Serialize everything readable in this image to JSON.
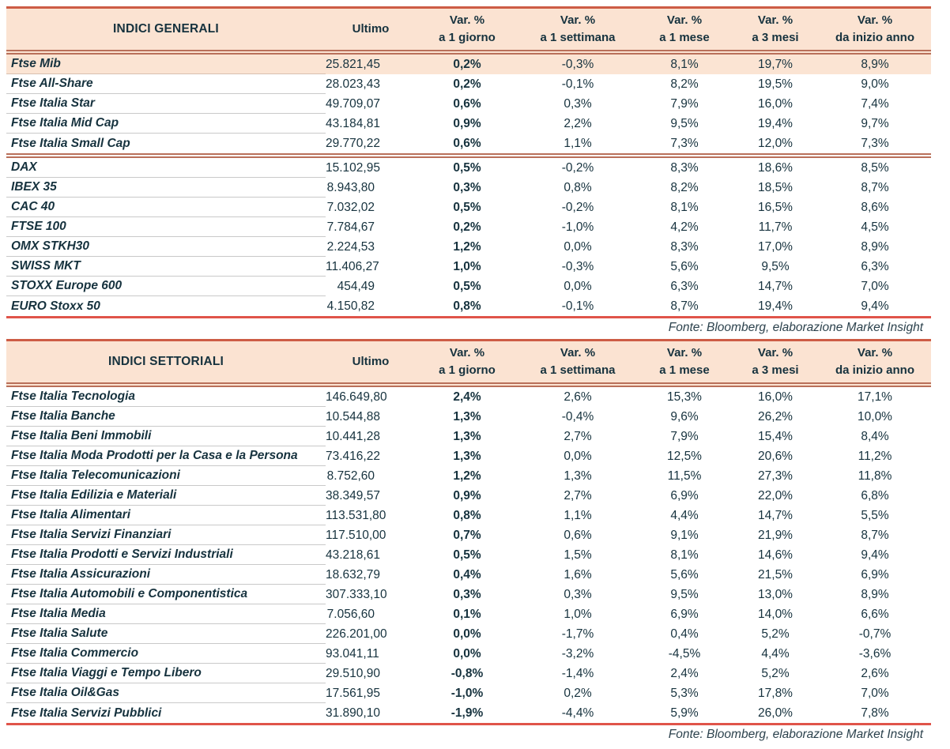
{
  "colors": {
    "header_bg": "#fbe3d2",
    "highlight_bg": "#fbe4d3",
    "accent_line": "#cd5c45",
    "bottom_line": "#e0544a",
    "double_line": "#b9705a",
    "text": "#16323e"
  },
  "columns": {
    "ultimo": "Ultimo",
    "var_headers": [
      {
        "line1": "Var. %",
        "line2": "a 1 giorno"
      },
      {
        "line1": "Var. %",
        "line2": "a 1 settimana"
      },
      {
        "line1": "Var. %",
        "line2": "a 1 mese"
      },
      {
        "line1": "Var. %",
        "line2": "a 3 mesi"
      },
      {
        "line1": "Var. %",
        "line2": "da inizio anno"
      }
    ]
  },
  "source_note": "Fonte: Bloomberg, elaborazione Market Insight",
  "tables": [
    {
      "title": "INDICI GENERALI",
      "groups": [
        {
          "rows": [
            {
              "name": "Ftse Mib",
              "ultimo": "25.821,45",
              "var_1g": "0,2%",
              "var_1s": "-0,3%",
              "var_1m": "8,1%",
              "var_3m": "19,7%",
              "var_ytd": "8,9%",
              "highlighted": true
            },
            {
              "name": "Ftse All-Share",
              "ultimo": "28.023,43",
              "var_1g": "0,2%",
              "var_1s": "-0,1%",
              "var_1m": "8,2%",
              "var_3m": "19,5%",
              "var_ytd": "9,0%"
            },
            {
              "name": "Ftse Italia Star",
              "ultimo": "49.709,07",
              "var_1g": "0,6%",
              "var_1s": "0,3%",
              "var_1m": "7,9%",
              "var_3m": "16,0%",
              "var_ytd": "7,4%"
            },
            {
              "name": "Ftse Italia Mid Cap",
              "ultimo": "43.184,81",
              "var_1g": "0,9%",
              "var_1s": "2,2%",
              "var_1m": "9,5%",
              "var_3m": "19,4%",
              "var_ytd": "9,7%"
            },
            {
              "name": "Ftse Italia Small Cap",
              "ultimo": "29.770,22",
              "var_1g": "0,6%",
              "var_1s": "1,1%",
              "var_1m": "7,3%",
              "var_3m": "12,0%",
              "var_ytd": "7,3%"
            }
          ]
        },
        {
          "rows": [
            {
              "name": "DAX",
              "ultimo": "15.102,95",
              "var_1g": "0,5%",
              "var_1s": "-0,2%",
              "var_1m": "8,3%",
              "var_3m": "18,6%",
              "var_ytd": "8,5%"
            },
            {
              "name": "IBEX 35",
              "ultimo": "8.943,80",
              "var_1g": "0,3%",
              "var_1s": "0,8%",
              "var_1m": "8,2%",
              "var_3m": "18,5%",
              "var_ytd": "8,7%"
            },
            {
              "name": "CAC 40",
              "ultimo": "7.032,02",
              "var_1g": "0,5%",
              "var_1s": "-0,2%",
              "var_1m": "8,1%",
              "var_3m": "16,5%",
              "var_ytd": "8,6%"
            },
            {
              "name": "FTSE 100",
              "ultimo": "7.784,67",
              "var_1g": "0,2%",
              "var_1s": "-1,0%",
              "var_1m": "4,2%",
              "var_3m": "11,7%",
              "var_ytd": "4,5%"
            },
            {
              "name": "OMX STKH30",
              "ultimo": "2.224,53",
              "var_1g": "1,2%",
              "var_1s": "0,0%",
              "var_1m": "8,3%",
              "var_3m": "17,0%",
              "var_ytd": "8,9%"
            },
            {
              "name": "SWISS MKT",
              "ultimo": "11.406,27",
              "var_1g": "1,0%",
              "var_1s": "-0,3%",
              "var_1m": "5,6%",
              "var_3m": "9,5%",
              "var_ytd": "6,3%"
            },
            {
              "name": "STOXX Europe 600",
              "ultimo": "454,49",
              "var_1g": "0,5%",
              "var_1s": "0,0%",
              "var_1m": "6,3%",
              "var_3m": "14,7%",
              "var_ytd": "7,0%"
            },
            {
              "name": "EURO Stoxx 50",
              "ultimo": "4.150,82",
              "var_1g": "0,8%",
              "var_1s": "-0,1%",
              "var_1m": "8,7%",
              "var_3m": "19,4%",
              "var_ytd": "9,4%"
            }
          ]
        }
      ]
    },
    {
      "title": "INDICI SETTORIALI",
      "groups": [
        {
          "rows": [
            {
              "name": "Ftse Italia Tecnologia",
              "ultimo": "146.649,80",
              "var_1g": "2,4%",
              "var_1s": "2,6%",
              "var_1m": "15,3%",
              "var_3m": "16,0%",
              "var_ytd": "17,1%"
            },
            {
              "name": "Ftse Italia Banche",
              "ultimo": "10.544,88",
              "var_1g": "1,3%",
              "var_1s": "-0,4%",
              "var_1m": "9,6%",
              "var_3m": "26,2%",
              "var_ytd": "10,0%"
            },
            {
              "name": "Ftse Italia Beni Immobili",
              "ultimo": "10.441,28",
              "var_1g": "1,3%",
              "var_1s": "2,7%",
              "var_1m": "7,9%",
              "var_3m": "15,4%",
              "var_ytd": "8,4%"
            },
            {
              "name": "Ftse Italia Moda Prodotti per la Casa e la Persona",
              "ultimo": "73.416,22",
              "var_1g": "1,3%",
              "var_1s": "0,0%",
              "var_1m": "12,5%",
              "var_3m": "20,6%",
              "var_ytd": "11,2%"
            },
            {
              "name": "Ftse Italia Telecomunicazioni",
              "ultimo": "8.752,60",
              "var_1g": "1,2%",
              "var_1s": "1,3%",
              "var_1m": "11,5%",
              "var_3m": "27,3%",
              "var_ytd": "11,8%"
            },
            {
              "name": "Ftse Italia Edilizia e Materiali",
              "ultimo": "38.349,57",
              "var_1g": "0,9%",
              "var_1s": "2,7%",
              "var_1m": "6,9%",
              "var_3m": "22,0%",
              "var_ytd": "6,8%"
            },
            {
              "name": "Ftse Italia Alimentari",
              "ultimo": "113.531,80",
              "var_1g": "0,8%",
              "var_1s": "1,1%",
              "var_1m": "4,4%",
              "var_3m": "14,7%",
              "var_ytd": "5,5%"
            },
            {
              "name": "Ftse Italia Servizi Finanziari",
              "ultimo": "117.510,00",
              "var_1g": "0,7%",
              "var_1s": "0,6%",
              "var_1m": "9,1%",
              "var_3m": "21,9%",
              "var_ytd": "8,7%"
            },
            {
              "name": "Ftse Italia Prodotti e Servizi Industriali",
              "ultimo": "43.218,61",
              "var_1g": "0,5%",
              "var_1s": "1,5%",
              "var_1m": "8,1%",
              "var_3m": "14,6%",
              "var_ytd": "9,4%"
            },
            {
              "name": "Ftse Italia Assicurazioni",
              "ultimo": "18.632,79",
              "var_1g": "0,4%",
              "var_1s": "1,6%",
              "var_1m": "5,6%",
              "var_3m": "21,5%",
              "var_ytd": "6,9%"
            },
            {
              "name": "Ftse Italia Automobili e Componentistica",
              "ultimo": "307.333,10",
              "var_1g": "0,3%",
              "var_1s": "0,3%",
              "var_1m": "9,5%",
              "var_3m": "13,0%",
              "var_ytd": "8,9%"
            },
            {
              "name": "Ftse Italia Media",
              "ultimo": "7.056,60",
              "var_1g": "0,1%",
              "var_1s": "1,0%",
              "var_1m": "6,9%",
              "var_3m": "14,0%",
              "var_ytd": "6,6%"
            },
            {
              "name": "Ftse Italia Salute",
              "ultimo": "226.201,00",
              "var_1g": "0,0%",
              "var_1s": "-1,7%",
              "var_1m": "0,4%",
              "var_3m": "5,2%",
              "var_ytd": "-0,7%"
            },
            {
              "name": "Ftse Italia Commercio",
              "ultimo": "93.041,11",
              "var_1g": "0,0%",
              "var_1s": "-3,2%",
              "var_1m": "-4,5%",
              "var_3m": "4,4%",
              "var_ytd": "-3,6%"
            },
            {
              "name": "Ftse Italia Viaggi e Tempo Libero",
              "ultimo": "29.510,90",
              "var_1g": "-0,8%",
              "var_1s": "-1,4%",
              "var_1m": "2,4%",
              "var_3m": "5,2%",
              "var_ytd": "2,6%"
            },
            {
              "name": "Ftse Italia Oil&Gas",
              "ultimo": "17.561,95",
              "var_1g": "-1,0%",
              "var_1s": "0,2%",
              "var_1m": "5,3%",
              "var_3m": "17,8%",
              "var_ytd": "7,0%"
            },
            {
              "name": "Ftse Italia Servizi Pubblici",
              "ultimo": "31.890,10",
              "var_1g": "-1,9%",
              "var_1s": "-4,4%",
              "var_1m": "5,9%",
              "var_3m": "26,0%",
              "var_ytd": "7,8%"
            }
          ]
        }
      ]
    }
  ]
}
